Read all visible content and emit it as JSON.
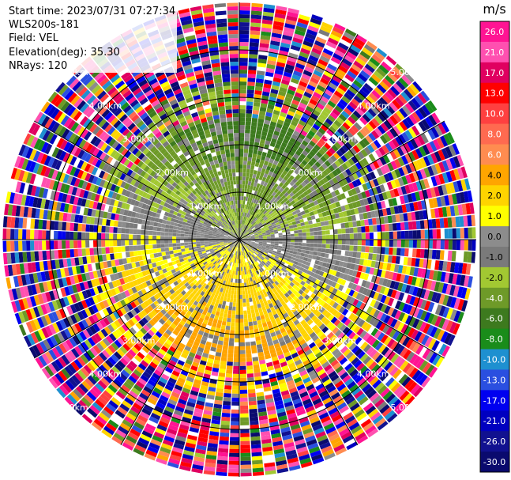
{
  "header": {
    "start_time": "Start time: 2023/07/31 07:27:34",
    "station": "WLS200s-181",
    "field": "Field: VEL",
    "elevation": "Elevation(deg): 35.30",
    "nrays": "NRays: 120"
  },
  "chart_data": {
    "type": "heatmap",
    "projection": "polar-ppi",
    "field": "VEL",
    "colorbar": {
      "unit": "m/s",
      "bounds": [
        -30.0,
        -26.0,
        -21.0,
        -17.0,
        -13.0,
        -10.0,
        -8.0,
        -6.0,
        -4.0,
        -2.0,
        -1.0,
        0.0,
        1.0,
        2.0,
        4.0,
        6.0,
        8.0,
        10.0,
        13.0,
        17.0,
        21.0,
        26.0
      ],
      "tick_labels": [
        "26.0",
        "21.0",
        "17.0",
        "13.0",
        "10.0",
        "8.0",
        "6.0",
        "4.0",
        "2.0",
        "1.0",
        "0.0",
        "-1.0",
        "-2.0",
        "-4.0",
        "-6.0",
        "-8.0",
        "-10.0",
        "-13.0",
        "-17.0",
        "-21.0",
        "-26.0",
        "-30.0"
      ],
      "colors": [
        "#0a0a6e",
        "#111190",
        "#0000c0",
        "#0000f0",
        "#2a4fe0",
        "#1e90d0",
        "#1a8c1a",
        "#3d7a1e",
        "#6e9a28",
        "#a2c832",
        "#7a7a7a",
        "#8c8c8c",
        "#ffff00",
        "#ffd400",
        "#ffa500",
        "#ff8c50",
        "#ff6a50",
        "#ff4040",
        "#ff0000",
        "#e00060",
        "#ff50b0",
        "#ff1493"
      ]
    },
    "range_rings": [
      {
        "range_km": 1.0,
        "label": "1.00km"
      },
      {
        "range_km": 2.0,
        "label": "2.00km"
      },
      {
        "range_km": 3.0,
        "label": "3.00km"
      },
      {
        "range_km": 4.0,
        "label": "4.00km"
      },
      {
        "range_km": 5.0,
        "label": "5.00km"
      }
    ],
    "spoke_azimuths_deg": [
      0,
      30,
      60,
      90,
      120,
      150,
      180,
      210,
      240,
      270,
      300,
      330
    ],
    "max_range_km": 5.0
  }
}
